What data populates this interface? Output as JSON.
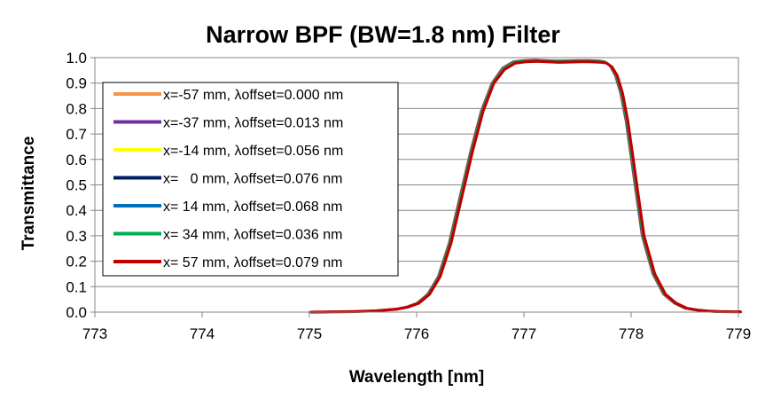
{
  "chart_data": {
    "type": "line",
    "title": "Narrow BPF (BW=1.8 nm) Filter",
    "xlabel": "Wavelength [nm]",
    "ylabel": "Transmittance",
    "xlim": [
      773,
      779
    ],
    "ylim": [
      0.0,
      1.0
    ],
    "x_ticks": [
      "773",
      "774",
      "775",
      "776",
      "777",
      "778",
      "779"
    ],
    "y_ticks": [
      "0.0",
      "0.1",
      "0.2",
      "0.3",
      "0.4",
      "0.5",
      "0.6",
      "0.7",
      "0.8",
      "0.9",
      "1.0"
    ],
    "grid": "horizontal",
    "legend_position": "left",
    "series": [
      {
        "name": "x=-57 mm, λoffset=0.000 nm",
        "color": "#F79646",
        "offset": 0.0
      },
      {
        "name": "x=-37 mm, λoffset=0.013 nm",
        "color": "#7030A0",
        "offset": 0.013
      },
      {
        "name": "x=-14 mm, λoffset=0.056 nm",
        "color": "#FFFF00",
        "offset": 0.056
      },
      {
        "name": "x=   0 mm, λoffset=0.076 nm",
        "color": "#002060",
        "offset": 0.076
      },
      {
        "name": "x= 14 mm, λoffset=0.068 nm",
        "color": "#0070C0",
        "offset": 0.068
      },
      {
        "name": "x= 34 mm, λoffset=0.036 nm",
        "color": "#00B050",
        "offset": 0.036
      },
      {
        "name": "x= 57 mm, λoffset=0.079 nm",
        "color": "#C00000",
        "offset": 0.079
      }
    ],
    "x": [
      775.0,
      775.2,
      775.4,
      775.6,
      775.8,
      775.9,
      776.0,
      776.1,
      776.2,
      776.3,
      776.4,
      776.5,
      776.6,
      776.7,
      776.8,
      776.9,
      777.0,
      777.1,
      777.2,
      777.3,
      777.4,
      777.5,
      777.6,
      777.7,
      777.75,
      777.8,
      777.85,
      777.9,
      777.95,
      778.0,
      778.05,
      778.1,
      778.2,
      778.3,
      778.4,
      778.5,
      778.6,
      778.7,
      778.8,
      779.0
    ],
    "y": [
      0.0,
      0.001,
      0.002,
      0.005,
      0.012,
      0.02,
      0.035,
      0.07,
      0.14,
      0.27,
      0.45,
      0.63,
      0.79,
      0.9,
      0.96,
      0.985,
      0.99,
      0.992,
      0.99,
      0.988,
      0.989,
      0.99,
      0.99,
      0.988,
      0.985,
      0.97,
      0.93,
      0.86,
      0.75,
      0.6,
      0.45,
      0.3,
      0.15,
      0.07,
      0.035,
      0.015,
      0.008,
      0.004,
      0.002,
      0.001
    ]
  }
}
